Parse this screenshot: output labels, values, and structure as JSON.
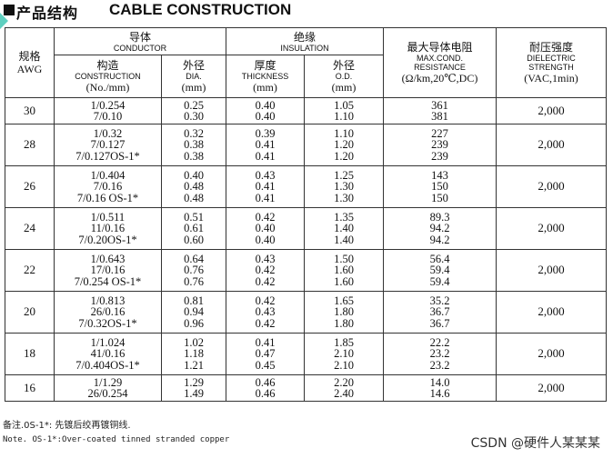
{
  "title": {
    "cn": "产品结构",
    "en": "CABLE CONSTRUCTION"
  },
  "header": {
    "awg_cn": "规格",
    "awg_en": "AWG",
    "conductor_cn": "导体",
    "conductor_en": "CONDUCTOR",
    "construction_cn": "构造",
    "construction_en": "CONSTRUCTION",
    "construction_unit": "(No./mm)",
    "dia_cn": "外径",
    "dia_en": "DIA.",
    "dia_unit": "(mm)",
    "insulation_cn": "绝缘",
    "insulation_en": "INSULATION",
    "thickness_cn": "厚度",
    "thickness_en": "THICKNESS",
    "thickness_unit": "(mm)",
    "od_cn": "外径",
    "od_en": "O.D.",
    "od_unit": "(mm)",
    "resistance_cn": "最大导体电阻",
    "resistance_en1": "MAX.COND.",
    "resistance_en2": "RESISTANCE",
    "resistance_unit": "(Ω/km,20℃,DC)",
    "dielectric_cn": "耐压强度",
    "dielectric_en1": "DIELECTRIC",
    "dielectric_en2": "STRENGTH",
    "dielectric_unit": "(VAC,1min)"
  },
  "groups": [
    {
      "awg": "30",
      "dielectric": "2,000",
      "rows": [
        {
          "construction": "1/0.254",
          "dia": "0.25",
          "thickness": "0.40",
          "od": "1.05",
          "resistance": "361"
        },
        {
          "construction": "7/0.10",
          "dia": "0.30",
          "thickness": "0.40",
          "od": "1.10",
          "resistance": "381"
        }
      ]
    },
    {
      "awg": "28",
      "dielectric": "2,000",
      "rows": [
        {
          "construction": "1/0.32",
          "dia": "0.32",
          "thickness": "0.39",
          "od": "1.10",
          "resistance": "227"
        },
        {
          "construction": "7/0.127",
          "dia": "0.38",
          "thickness": "0.41",
          "od": "1.20",
          "resistance": "239"
        },
        {
          "construction": "7/0.127OS-1*",
          "dia": "0.38",
          "thickness": "0.41",
          "od": "1.20",
          "resistance": "239"
        }
      ]
    },
    {
      "awg": "26",
      "dielectric": "2,000",
      "rows": [
        {
          "construction": "1/0.404",
          "dia": "0.40",
          "thickness": "0.43",
          "od": "1.25",
          "resistance": "143"
        },
        {
          "construction": "7/0.16",
          "dia": "0.48",
          "thickness": "0.41",
          "od": "1.30",
          "resistance": "150"
        },
        {
          "construction": "7/0.16 OS-1*",
          "dia": "0.48",
          "thickness": "0.41",
          "od": "1.30",
          "resistance": "150"
        }
      ]
    },
    {
      "awg": "24",
      "dielectric": "2,000",
      "rows": [
        {
          "construction": "1/0.511",
          "dia": "0.51",
          "thickness": "0.42",
          "od": "1.35",
          "resistance": "89.3"
        },
        {
          "construction": "11/0.16",
          "dia": "0.61",
          "thickness": "0.40",
          "od": "1.40",
          "resistance": "94.2"
        },
        {
          "construction": "7/0.20OS-1*",
          "dia": "0.60",
          "thickness": "0.40",
          "od": "1.40",
          "resistance": "94.2"
        }
      ]
    },
    {
      "awg": "22",
      "dielectric": "2,000",
      "rows": [
        {
          "construction": "1/0.643",
          "dia": "0.64",
          "thickness": "0.43",
          "od": "1.50",
          "resistance": "56.4"
        },
        {
          "construction": "17/0.16",
          "dia": "0.76",
          "thickness": "0.42",
          "od": "1.60",
          "resistance": "59.4"
        },
        {
          "construction": "7/0.254 OS-1*",
          "dia": "0.76",
          "thickness": "0.42",
          "od": "1.60",
          "resistance": "59.4"
        }
      ]
    },
    {
      "awg": "20",
      "dielectric": "2,000",
      "rows": [
        {
          "construction": "1/0.813",
          "dia": "0.81",
          "thickness": "0.42",
          "od": "1.65",
          "resistance": "35.2"
        },
        {
          "construction": "26/0.16",
          "dia": "0.94",
          "thickness": "0.43",
          "od": "1.80",
          "resistance": "36.7"
        },
        {
          "construction": "7/0.32OS-1*",
          "dia": "0.96",
          "thickness": "0.42",
          "od": "1.80",
          "resistance": "36.7"
        }
      ]
    },
    {
      "awg": "18",
      "dielectric": "2,000",
      "rows": [
        {
          "construction": "1/1.024",
          "dia": "1.02",
          "thickness": "0.41",
          "od": "1.85",
          "resistance": "22.2"
        },
        {
          "construction": "41/0.16",
          "dia": "1.18",
          "thickness": "0.47",
          "od": "2.10",
          "resistance": "23.2"
        },
        {
          "construction": "7/0.404OS-1*",
          "dia": "1.21",
          "thickness": "0.45",
          "od": "2.10",
          "resistance": "23.2"
        }
      ]
    },
    {
      "awg": "16",
      "dielectric": "2,000",
      "rows": [
        {
          "construction": "1/1.29",
          "dia": "1.29",
          "thickness": "0.46",
          "od": "2.20",
          "resistance": "14.0"
        },
        {
          "construction": "26/0.254",
          "dia": "1.49",
          "thickness": "0.46",
          "od": "2.40",
          "resistance": "14.6"
        }
      ]
    }
  ],
  "notes": {
    "cn": "备注.0S-1*:   先镀后绞再镀铜线.",
    "en": "Note. OS-1*:Over-coated tinned stranded copper"
  },
  "watermark": "CSDN @硬件人某某某"
}
